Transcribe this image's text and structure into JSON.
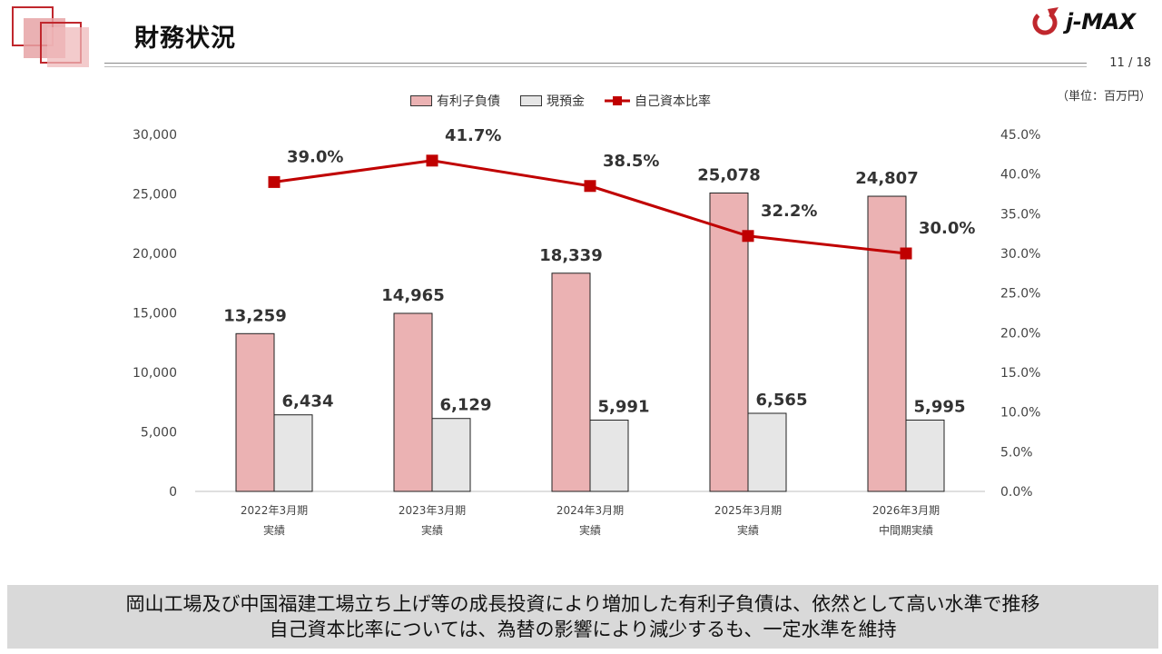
{
  "header": {
    "title": "財務状況",
    "logo_text": "j-MAX",
    "page_number": "11 / 18",
    "unit": "（単位：百万円）"
  },
  "colors": {
    "debt": "#ebb2b3",
    "cash": "#e6e6e6",
    "ratio": "#c00000",
    "accent": "#c0272d"
  },
  "chart_data": {
    "type": "bar",
    "title": "",
    "categories": [
      [
        "2022年3月期",
        "実績"
      ],
      [
        "2023年3月期",
        "実績"
      ],
      [
        "2024年3月期",
        "実績"
      ],
      [
        "2025年3月期",
        "実績"
      ],
      [
        "2026年3月期",
        "中間期実績"
      ]
    ],
    "series": [
      {
        "name": "有利子負債",
        "type": "bar",
        "axis": "left",
        "values": [
          13259,
          14965,
          18339,
          25078,
          24807
        ],
        "labels": [
          "13,259",
          "14,965",
          "18,339",
          "25,078",
          "24,807"
        ]
      },
      {
        "name": "現預金",
        "type": "bar",
        "axis": "left",
        "values": [
          6434,
          6129,
          5991,
          6565,
          5995
        ],
        "labels": [
          "6,434",
          "6,129",
          "5,991",
          "6,565",
          "5,995"
        ]
      },
      {
        "name": "自己資本比率",
        "type": "line",
        "axis": "right",
        "values": [
          39.0,
          41.7,
          38.5,
          32.2,
          30.0
        ],
        "labels": [
          "39.0%",
          "41.7%",
          "38.5%",
          "32.2%",
          "30.0%"
        ]
      }
    ],
    "y_left": {
      "min": 0,
      "max": 30000,
      "ticks": [
        "0",
        "5,000",
        "10,000",
        "15,000",
        "20,000",
        "25,000",
        "30,000"
      ]
    },
    "y_right": {
      "min": 0,
      "max": 45,
      "ticks": [
        "0.0%",
        "5.0%",
        "10.0%",
        "15.0%",
        "20.0%",
        "25.0%",
        "30.0%",
        "35.0%",
        "40.0%",
        "45.0%"
      ]
    },
    "grid": false,
    "legend": "top-center"
  },
  "summary": {
    "line1": "岡山工場及び中国福建工場立ち上げ等の成長投資により増加した有利子負債は、依然として高い水準で推移",
    "line2": "自己資本比率については、為替の影響により減少するも、一定水準を維持"
  }
}
